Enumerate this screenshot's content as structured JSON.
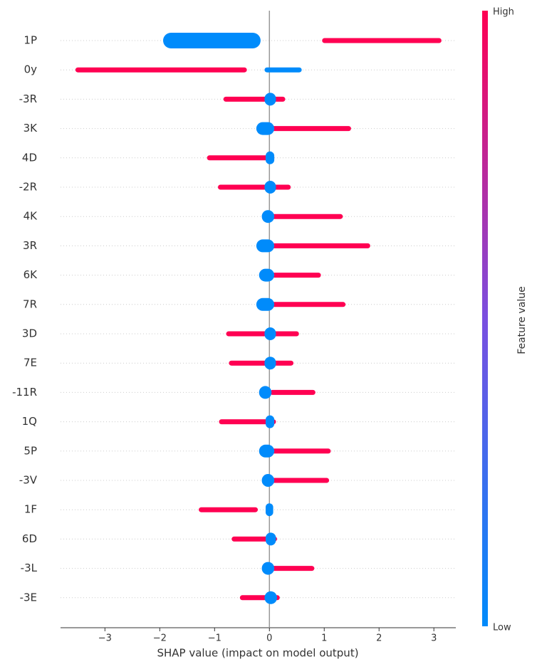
{
  "chart_data": {
    "type": "beeswarm",
    "xlabel": "SHAP value (impact on model output)",
    "colorbar_label": "Feature value",
    "colorbar_high": "High",
    "colorbar_low": "Low",
    "xlim": [
      -3.81,
      3.4
    ],
    "xticks": [
      {
        "value": -3,
        "label": "−3"
      },
      {
        "value": -2,
        "label": "−2"
      },
      {
        "value": -1,
        "label": "−1"
      },
      0,
      1,
      2,
      3
    ],
    "grid": true,
    "categories": [
      "1P",
      "0y",
      "-3R",
      "3K",
      "4D",
      "-2R",
      "4K",
      "3R",
      "6K",
      "7R",
      "3D",
      "7E",
      "-11R",
      "1Q",
      "5P",
      "-3V",
      "1F",
      "6D",
      "-3L",
      "-3E"
    ],
    "series": [
      {
        "name": "High",
        "color": "#ff0052",
        "values": [
          [
            1.0,
            3.1
          ],
          [
            -3.5,
            -0.45
          ],
          [
            -0.8,
            0.25
          ],
          [
            0.0,
            1.45
          ],
          [
            -1.1,
            0.05
          ],
          [
            -0.9,
            0.35
          ],
          [
            0.0,
            1.3
          ],
          [
            0.0,
            1.8
          ],
          [
            0.0,
            0.9
          ],
          [
            0.0,
            1.35
          ],
          [
            -0.75,
            0.5
          ],
          [
            -0.7,
            0.4
          ],
          [
            0.05,
            0.8
          ],
          [
            -0.88,
            0.08
          ],
          [
            0.0,
            1.08
          ],
          [
            0.0,
            1.05
          ],
          [
            -1.25,
            -0.25
          ],
          [
            -0.65,
            0.1
          ],
          [
            0.0,
            0.78
          ],
          [
            -0.5,
            0.15
          ]
        ]
      },
      {
        "name": "Low",
        "color": "#008bfb",
        "values": [
          [
            -1.9,
            -0.2
          ],
          [
            -0.05,
            0.55
          ],
          [
            -0.05,
            0.08
          ],
          [
            -0.2,
            0.05
          ],
          [
            -0.03,
            0.05
          ],
          [
            -0.05,
            0.08
          ],
          [
            -0.1,
            0.05
          ],
          [
            -0.2,
            0.05
          ],
          [
            -0.15,
            0.05
          ],
          [
            -0.2,
            0.05
          ],
          [
            -0.05,
            0.08
          ],
          [
            -0.05,
            0.08
          ],
          [
            -0.15,
            0.0
          ],
          [
            -0.03,
            0.05
          ],
          [
            -0.15,
            0.05
          ],
          [
            -0.1,
            0.05
          ],
          [
            -0.03,
            0.03
          ],
          [
            -0.03,
            0.08
          ],
          [
            -0.1,
            0.05
          ],
          [
            -0.05,
            0.1
          ]
        ]
      }
    ]
  }
}
